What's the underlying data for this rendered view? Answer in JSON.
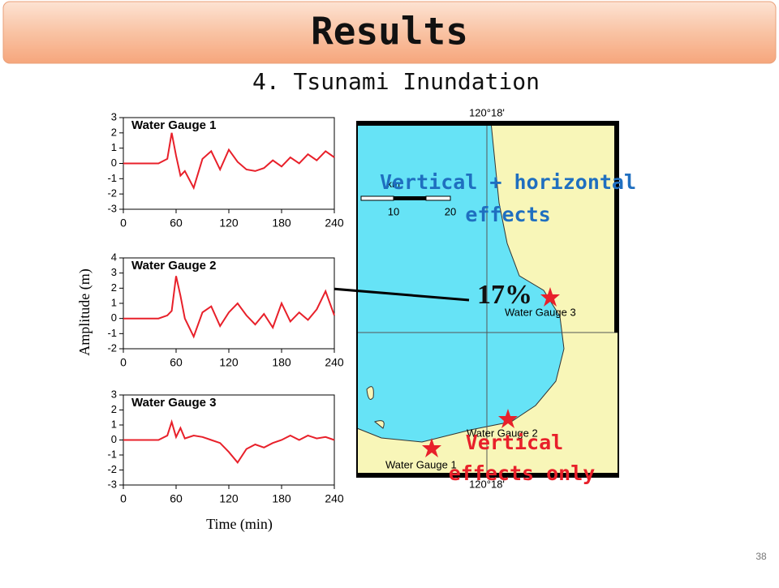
{
  "header": {
    "title": "Results",
    "subtitle": "4. Tsunami Inundation"
  },
  "charts": {
    "y_label": "Amplitude (m)",
    "x_label": "Time (min)",
    "panels": [
      {
        "type": "line",
        "title": "Water Gauge 1",
        "x": [
          0,
          10,
          20,
          30,
          40,
          50,
          55,
          60,
          65,
          70,
          80,
          90,
          100,
          110,
          120,
          130,
          140,
          150,
          160,
          170,
          180,
          190,
          200,
          210,
          220,
          230,
          240
        ],
        "series": [
          {
            "color": "#e8202a",
            "values": [
              0,
              0,
              0,
              0,
              0,
              0.3,
              2,
              0.5,
              -0.8,
              -0.5,
              -1.6,
              0.3,
              0.8,
              -0.4,
              0.9,
              0.1,
              -0.4,
              -0.5,
              -0.3,
              0.2,
              -0.2,
              0.4,
              0,
              0.6,
              0.2,
              0.8,
              0.4
            ]
          }
        ],
        "xlim": [
          0,
          240
        ],
        "xticks": [
          0,
          60,
          120,
          180,
          240
        ],
        "ylim": [
          -3,
          3
        ],
        "yticks": [
          -3,
          -2,
          -1,
          0,
          1,
          2,
          3
        ]
      },
      {
        "type": "line",
        "title": "Water Gauge 2",
        "x": [
          0,
          10,
          20,
          30,
          40,
          50,
          55,
          60,
          65,
          70,
          80,
          90,
          100,
          110,
          120,
          130,
          140,
          150,
          160,
          170,
          180,
          190,
          200,
          210,
          220,
          230,
          240
        ],
        "series": [
          {
            "color": "#e8202a",
            "values": [
              0,
              0,
              0,
              0,
              0,
              0.2,
              0.5,
              2.8,
              1.5,
              0,
              -1.2,
              0.4,
              0.8,
              -0.5,
              0.4,
              1,
              0.2,
              -0.4,
              0.3,
              -0.6,
              1,
              -0.2,
              0.4,
              -0.1,
              0.6,
              1.8,
              0.2
            ]
          }
        ],
        "xlim": [
          0,
          240
        ],
        "xticks": [
          0,
          60,
          120,
          180,
          240
        ],
        "ylim": [
          -2,
          4
        ],
        "yticks": [
          -2,
          -1,
          0,
          1,
          2,
          3,
          4
        ]
      },
      {
        "type": "line",
        "title": "Water Gauge 3",
        "x": [
          0,
          10,
          20,
          30,
          40,
          50,
          55,
          60,
          65,
          70,
          80,
          90,
          100,
          110,
          120,
          130,
          140,
          150,
          160,
          170,
          180,
          190,
          200,
          210,
          220,
          230,
          240
        ],
        "series": [
          {
            "color": "#e8202a",
            "values": [
              0,
              0,
              0,
              0,
              0,
              0.3,
              1.2,
              0.2,
              0.8,
              0.1,
              0.3,
              0.2,
              0,
              -0.2,
              -0.8,
              -1.5,
              -0.6,
              -0.3,
              -0.5,
              -0.2,
              0,
              0.3,
              0,
              0.3,
              0.1,
              0.2,
              0
            ]
          }
        ],
        "xlim": [
          0,
          240
        ],
        "xticks": [
          0,
          60,
          120,
          180,
          240
        ],
        "ylim": [
          -3,
          3
        ],
        "yticks": [
          -3,
          -2,
          -1,
          0,
          1,
          2,
          3
        ]
      }
    ]
  },
  "map": {
    "lon_label_top": "120°18'",
    "lon_label_bottom": "120°18'",
    "scale_labels": [
      "km",
      "10",
      "20"
    ],
    "gauges": [
      "Water Gauge 1",
      "Water Gauge 2",
      "Water Gauge 3"
    ]
  },
  "annotations": {
    "blue": [
      "Vertical + horizontal",
      "effects"
    ],
    "red": [
      "Vertical",
      "effects only"
    ],
    "percent": "17%"
  },
  "page_number": "38"
}
